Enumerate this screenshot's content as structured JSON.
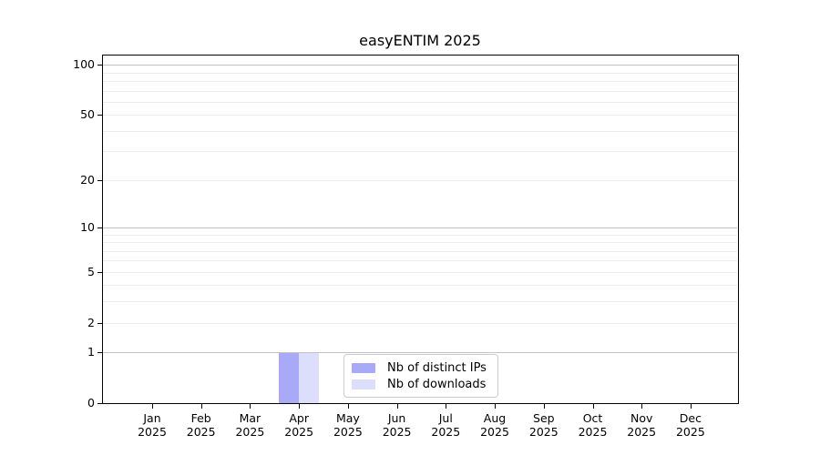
{
  "chart_data": {
    "type": "bar",
    "title": "easyENTIM 2025",
    "categories": [
      "Jan 2025",
      "Feb 2025",
      "Mar 2025",
      "Apr 2025",
      "May 2025",
      "Jun 2025",
      "Jul 2025",
      "Aug 2025",
      "Sep 2025",
      "Oct 2025",
      "Nov 2025",
      "Dec 2025"
    ],
    "month_labels": [
      "Jan",
      "Feb",
      "Mar",
      "Apr",
      "May",
      "Jun",
      "Jul",
      "Aug",
      "Sep",
      "Oct",
      "Nov",
      "Dec"
    ],
    "year_label": "2025",
    "series": [
      {
        "name": "Nb of distinct IPs",
        "color": "#a8aaf8",
        "values": [
          0,
          0,
          0,
          1,
          0,
          0,
          0,
          0,
          0,
          0,
          0,
          0
        ]
      },
      {
        "name": "Nb of downloads",
        "color": "#dcdefb",
        "values": [
          0,
          0,
          0,
          1,
          0,
          0,
          0,
          0,
          0,
          0,
          0,
          0
        ]
      }
    ],
    "yscale": "log1p",
    "ylim": [
      0,
      115
    ],
    "ytick_values": [
      0,
      1,
      2,
      5,
      10,
      20,
      50,
      100
    ],
    "ytick_labels": [
      "0",
      "1",
      "2",
      "5",
      "10",
      "20",
      "50",
      "100"
    ],
    "major_grid_values": [
      1,
      10,
      100
    ],
    "minor_grid_values": [
      2,
      3,
      4,
      5,
      6,
      7,
      8,
      9,
      20,
      30,
      40,
      50,
      60,
      70,
      80,
      90
    ],
    "grid": true,
    "legend_position": "lower-center-inside",
    "colors": {
      "major_grid": "#c3c3c3",
      "minor_grid": "#ebebeb",
      "axis": "#000000",
      "background": "#ffffff"
    }
  }
}
